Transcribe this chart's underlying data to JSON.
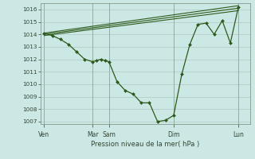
{
  "background_color": "#cce8e4",
  "grid_color": "#b0c8c4",
  "line_color": "#2d5a1b",
  "marker_color": "#2d5a1b",
  "title": "Pression niveau de la mer( hPa )",
  "ylim": [
    1006.8,
    1016.5
  ],
  "yticks": [
    1007,
    1008,
    1009,
    1010,
    1011,
    1012,
    1013,
    1014,
    1015,
    1016
  ],
  "day_labels": [
    "Ven",
    "Mar",
    "Sam",
    "Dim",
    "Lun"
  ],
  "day_positions": [
    0,
    72,
    96,
    192,
    288
  ],
  "xlim": [
    -5,
    305
  ],
  "series1_x": [
    0,
    12,
    24,
    36,
    48,
    60,
    72,
    78,
    84,
    90,
    96,
    108,
    120,
    132,
    144,
    156,
    168,
    180,
    192,
    204,
    216,
    228,
    240,
    252,
    264,
    276,
    288
  ],
  "series1_y": [
    1014.1,
    1013.9,
    1013.6,
    1013.2,
    1012.6,
    1012.0,
    1011.8,
    1011.9,
    1012.0,
    1011.9,
    1011.8,
    1010.2,
    1009.5,
    1009.2,
    1008.5,
    1008.5,
    1007.0,
    1007.1,
    1007.5,
    1010.8,
    1013.2,
    1014.8,
    1014.9,
    1014.0,
    1015.1,
    1013.3,
    1016.2
  ],
  "series2_x": [
    0,
    288
  ],
  "series2_y": [
    1014.0,
    1016.1
  ],
  "series3_x": [
    0,
    288
  ],
  "series3_y": [
    1014.1,
    1016.3
  ],
  "series4_x": [
    0,
    288
  ],
  "series4_y": [
    1013.9,
    1015.9
  ]
}
